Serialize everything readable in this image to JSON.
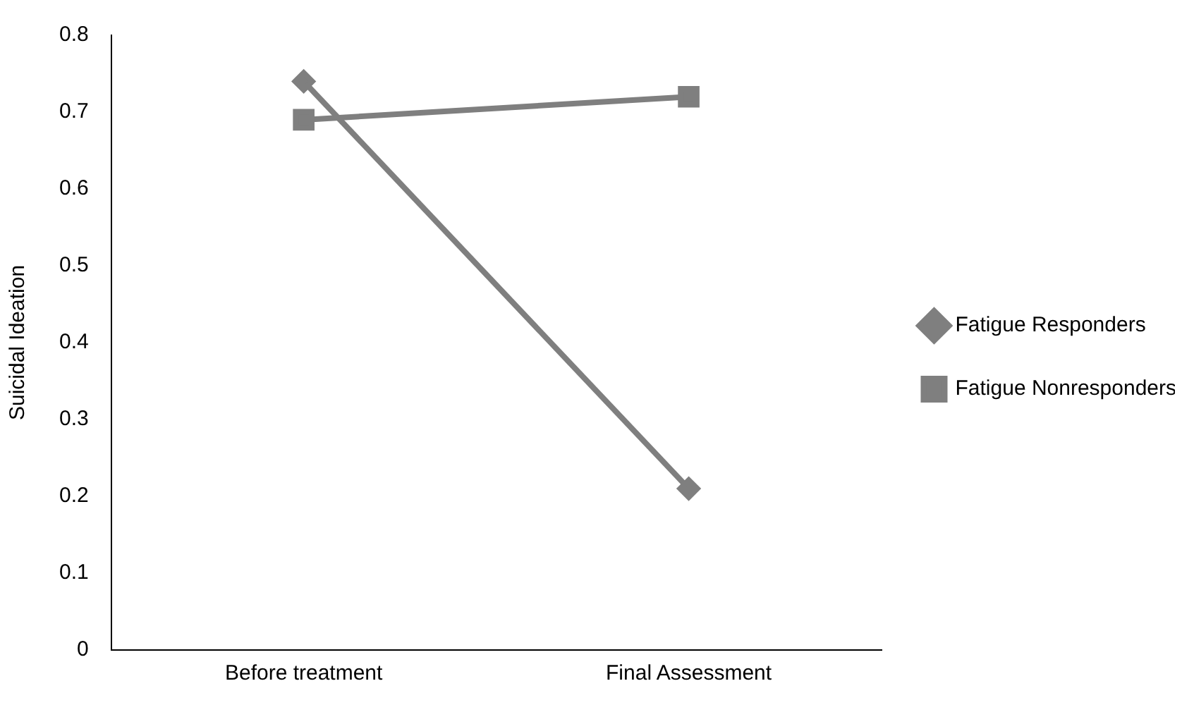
{
  "chart_data": {
    "type": "line",
    "ylabel": "Suicidal Ideation",
    "categories": [
      "Before treatment",
      "Final Assessment"
    ],
    "series": [
      {
        "name": "Fatigue Responders",
        "color": "#7f7f7f",
        "values": [
          0.74,
          0.21
        ],
        "marker": "diamond"
      },
      {
        "name": "Fatigue Nonresponders",
        "color": "#7f7f7f",
        "values": [
          0.69,
          0.72
        ],
        "marker": "square"
      }
    ],
    "ylim": [
      0,
      0.8
    ],
    "yticks": [
      0,
      0.1,
      0.2,
      0.3,
      0.4,
      0.5,
      0.6,
      0.7,
      0.8
    ],
    "grid": false,
    "legend": "right",
    "line_style": "solid"
  }
}
